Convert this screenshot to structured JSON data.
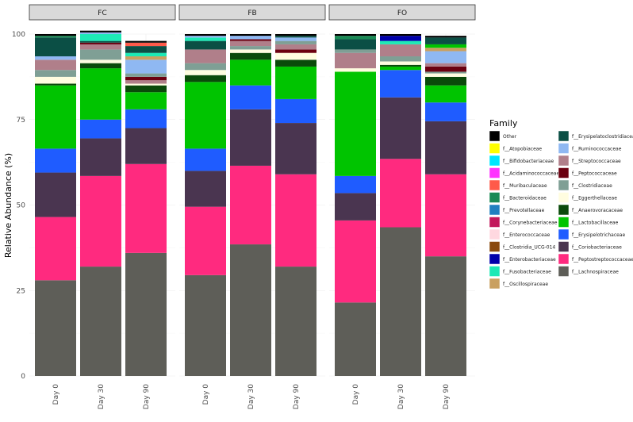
{
  "chart_data": {
    "type": "bar",
    "stacked": true,
    "ylabel": "Relative Abundance (%)",
    "ylim": [
      0,
      100
    ],
    "yticks": [
      0,
      25,
      50,
      75,
      100
    ],
    "grid": true,
    "legend_title": "Family",
    "legend_position": "right",
    "panels": [
      {
        "name": "FC",
        "categories": [
          "Day 0",
          "Day 30",
          "Day 90"
        ],
        "stacks": [
          [
            {
              "family": "f__Lachnospiraceae",
              "value": 28
            },
            {
              "family": "f__Peptostreptococcaceae",
              "value": 18.5
            },
            {
              "family": "f__Coriobacteriaceae",
              "value": 13
            },
            {
              "family": "f__Erysipelotrichaceae",
              "value": 7
            },
            {
              "family": "f__Lactobacillaceae",
              "value": 18.5
            },
            {
              "family": "f__Anaerovoracaceae",
              "value": 0.5
            },
            {
              "family": "f__Eggerthellaceae",
              "value": 2
            },
            {
              "family": "f__Clostridiaceae",
              "value": 2
            },
            {
              "family": "f__Streptococcaceae",
              "value": 3
            },
            {
              "family": "f__Ruminococcaceae",
              "value": 1
            },
            {
              "family": "f__Erysipelatoclostridiaceae",
              "value": 5.5
            },
            {
              "family": "f__Bacteroidaceae",
              "value": 0.5
            },
            {
              "family": "Other",
              "value": 0.5
            }
          ],
          [
            {
              "family": "f__Lachnospiraceae",
              "value": 32
            },
            {
              "family": "f__Peptostreptococcaceae",
              "value": 26.5
            },
            {
              "family": "f__Coriobacteriaceae",
              "value": 11
            },
            {
              "family": "f__Erysipelotrichaceae",
              "value": 5.5
            },
            {
              "family": "f__Lactobacillaceae",
              "value": 15
            },
            {
              "family": "f__Anaerovoracaceae",
              "value": 1.5
            },
            {
              "family": "f__Eggerthellaceae",
              "value": 1
            },
            {
              "family": "f__Clostridiaceae",
              "value": 3
            },
            {
              "family": "f__Streptococcaceae",
              "value": 1.5
            },
            {
              "family": "f__Peptococcaceae",
              "value": 0.5
            },
            {
              "family": "f__Erysipelatoclostridiaceae",
              "value": 0.5
            },
            {
              "family": "f__Fusobacteriaceae",
              "value": 2
            },
            {
              "family": "f__Ruminococcaceae",
              "value": 0.5
            },
            {
              "family": "Other",
              "value": 0.5
            }
          ],
          [
            {
              "family": "f__Lachnospiraceae",
              "value": 36
            },
            {
              "family": "f__Peptostreptococcaceae",
              "value": 26
            },
            {
              "family": "f__Coriobacteriaceae",
              "value": 10.5
            },
            {
              "family": "f__Erysipelotrichaceae",
              "value": 5.5
            },
            {
              "family": "f__Lactobacillaceae",
              "value": 5
            },
            {
              "family": "f__Anaerovoracaceae",
              "value": 2
            },
            {
              "family": "f__Eggerthellaceae",
              "value": 0.5
            },
            {
              "family": "f__Streptococcaceae",
              "value": 1
            },
            {
              "family": "f__Peptococcaceae",
              "value": 1
            },
            {
              "family": "f__Clostridiaceae",
              "value": 1
            },
            {
              "family": "f__Ruminococcaceae",
              "value": 4
            },
            {
              "family": "f__Oscillospiraceae",
              "value": 1
            },
            {
              "family": "f__Fusobacteriaceae",
              "value": 1
            },
            {
              "family": "f__Erysipelatoclostridiaceae",
              "value": 2
            },
            {
              "family": "f__Muribaculaceae",
              "value": 1
            },
            {
              "family": "Other",
              "value": 0.5
            }
          ]
        ]
      },
      {
        "name": "FB",
        "categories": [
          "Day 0",
          "Day 30",
          "Day 90"
        ],
        "stacks": [
          [
            {
              "family": "f__Lachnospiraceae",
              "value": 29.5
            },
            {
              "family": "f__Peptostreptococcaceae",
              "value": 20
            },
            {
              "family": "f__Coriobacteriaceae",
              "value": 10.5
            },
            {
              "family": "f__Erysipelotrichaceae",
              "value": 6.5
            },
            {
              "family": "f__Lactobacillaceae",
              "value": 19.5
            },
            {
              "family": "f__Anaerovoracaceae",
              "value": 2
            },
            {
              "family": "f__Eggerthellaceae",
              "value": 1.5
            },
            {
              "family": "f__Clostridiaceae",
              "value": 2
            },
            {
              "family": "f__Streptococcaceae",
              "value": 4
            },
            {
              "family": "f__Erysipelatoclostridiaceae",
              "value": 2.5
            },
            {
              "family": "f__Fusobacteriaceae",
              "value": 1
            },
            {
              "family": "f__Ruminococcaceae",
              "value": 0.5
            },
            {
              "family": "Other",
              "value": 0.5
            }
          ],
          [
            {
              "family": "f__Lachnospiraceae",
              "value": 38.5
            },
            {
              "family": "f__Peptostreptococcaceae",
              "value": 23
            },
            {
              "family": "f__Coriobacteriaceae",
              "value": 16.5
            },
            {
              "family": "f__Erysipelotrichaceae",
              "value": 7
            },
            {
              "family": "f__Lactobacillaceae",
              "value": 7.5
            },
            {
              "family": "f__Anaerovoracaceae",
              "value": 2
            },
            {
              "family": "f__Eggerthellaceae",
              "value": 1
            },
            {
              "family": "f__Clostridiaceae",
              "value": 1
            },
            {
              "family": "f__Streptococcaceae",
              "value": 1.5
            },
            {
              "family": "f__Peptococcaceae",
              "value": 0.5
            },
            {
              "family": "f__Ruminococcaceae",
              "value": 1
            },
            {
              "family": "Other",
              "value": 0.5
            }
          ],
          [
            {
              "family": "f__Lachnospiraceae",
              "value": 32
            },
            {
              "family": "f__Peptostreptococcaceae",
              "value": 27
            },
            {
              "family": "f__Coriobacteriaceae",
              "value": 15
            },
            {
              "family": "f__Erysipelotrichaceae",
              "value": 7
            },
            {
              "family": "f__Lactobacillaceae",
              "value": 9.5
            },
            {
              "family": "f__Anaerovoracaceae",
              "value": 2
            },
            {
              "family": "f__Eggerthellaceae",
              "value": 2
            },
            {
              "family": "f__Peptococcaceae",
              "value": 1
            },
            {
              "family": "f__Streptococcaceae",
              "value": 1.5
            },
            {
              "family": "f__Clostridiaceae",
              "value": 1
            },
            {
              "family": "f__Ruminococcaceae",
              "value": 1
            },
            {
              "family": "f__Erysipelatoclostridiaceae",
              "value": 0.5
            },
            {
              "family": "Other",
              "value": 0.5
            }
          ]
        ]
      },
      {
        "name": "FO",
        "categories": [
          "Day 0",
          "Day 30",
          "Day 90"
        ],
        "stacks": [
          [
            {
              "family": "f__Lachnospiraceae",
              "value": 21.5
            },
            {
              "family": "f__Peptostreptococcaceae",
              "value": 24
            },
            {
              "family": "f__Coriobacteriaceae",
              "value": 8
            },
            {
              "family": "f__Erysipelotrichaceae",
              "value": 5
            },
            {
              "family": "f__Lactobacillaceae",
              "value": 30.5
            },
            {
              "family": "f__Eggerthellaceae",
              "value": 1
            },
            {
              "family": "f__Streptococcaceae",
              "value": 4.5
            },
            {
              "family": "f__Clostridiaceae",
              "value": 1
            },
            {
              "family": "f__Erysipelatoclostridiaceae",
              "value": 3
            },
            {
              "family": "f__Bacteroidaceae",
              "value": 1
            },
            {
              "family": "Other",
              "value": 0.5
            }
          ],
          [
            {
              "family": "f__Lachnospiraceae",
              "value": 43.5
            },
            {
              "family": "f__Peptostreptococcaceae",
              "value": 20
            },
            {
              "family": "f__Coriobacteriaceae",
              "value": 18
            },
            {
              "family": "f__Erysipelotrichaceae",
              "value": 8
            },
            {
              "family": "f__Lactobacillaceae",
              "value": 1
            },
            {
              "family": "f__Anaerovoracaceae",
              "value": 0.5
            },
            {
              "family": "f__Eggerthellaceae",
              "value": 1
            },
            {
              "family": "f__Clostridiaceae",
              "value": 1.5
            },
            {
              "family": "f__Streptococcaceae",
              "value": 3.5
            },
            {
              "family": "f__Fusobacteriaceae",
              "value": 1
            },
            {
              "family": "f__Enterobacteriaceae",
              "value": 1.5
            },
            {
              "family": "Other",
              "value": 0.5
            }
          ],
          [
            {
              "family": "f__Lachnospiraceae",
              "value": 35
            },
            {
              "family": "f__Peptostreptococcaceae",
              "value": 24
            },
            {
              "family": "f__Coriobacteriaceae",
              "value": 15.5
            },
            {
              "family": "f__Erysipelotrichaceae",
              "value": 5.5
            },
            {
              "family": "f__Lactobacillaceae",
              "value": 5
            },
            {
              "family": "f__Anaerovoracaceae",
              "value": 2.5
            },
            {
              "family": "f__Eggerthellaceae",
              "value": 1
            },
            {
              "family": "f__Clostridiaceae",
              "value": 0.5
            },
            {
              "family": "f__Peptococcaceae",
              "value": 1.5
            },
            {
              "family": "f__Streptococcaceae",
              "value": 1
            },
            {
              "family": "f__Ruminococcaceae",
              "value": 3.5
            },
            {
              "family": "f__Oscillospiraceae",
              "value": 1
            },
            {
              "family": "f__Lactobacillaceae",
              "value": 1
            },
            {
              "family": "f__Erysipelatoclostridiaceae",
              "value": 2
            },
            {
              "family": "Other",
              "value": 0.5
            }
          ]
        ]
      }
    ],
    "legend": [
      {
        "label": "Other",
        "color": "#000000"
      },
      {
        "label": "f__Atopobiaceae",
        "color": "#ffff00"
      },
      {
        "label": "f__Bifidobacteriaceae",
        "color": "#00e5ff"
      },
      {
        "label": "f__Acidaminococcaceae",
        "color": "#ff33ff"
      },
      {
        "label": "f__Muribaculaceae",
        "color": "#ff5a4a"
      },
      {
        "label": "f__Bacteroidaceae",
        "color": "#1a8a55"
      },
      {
        "label": "f__Prevotellaceae",
        "color": "#1f7fbf"
      },
      {
        "label": "f__Corynebacteriaceae",
        "color": "#c2185b"
      },
      {
        "label": "f__Enterococcaceae",
        "color": "#ffd8e0"
      },
      {
        "label": "f__Clostridia_UCG-014",
        "color": "#8a4b0f"
      },
      {
        "label": "f__Enterobacteriaceae",
        "color": "#0000aa"
      },
      {
        "label": "f__Fusobacteriaceae",
        "color": "#1de9b6"
      },
      {
        "label": "f__Oscillospiraceae",
        "color": "#c9a060"
      },
      {
        "label": "f__Erysipelatoclostridiaceae",
        "color": "#0b4f45"
      },
      {
        "label": "f__Ruminococcaceae",
        "color": "#8fb8f2"
      },
      {
        "label": "f__Streptococcaceae",
        "color": "#b07f8a"
      },
      {
        "label": "f__Peptococcaceae",
        "color": "#6b0010"
      },
      {
        "label": "f__Clostridiaceae",
        "color": "#7f9f95"
      },
      {
        "label": "f__Eggerthellaceae",
        "color": "#fffde0"
      },
      {
        "label": "f__Anaerovoracaceae",
        "color": "#0a4a0a"
      },
      {
        "label": "f__Lactobacillaceae",
        "color": "#00c400"
      },
      {
        "label": "f__Erysipelotrichaceae",
        "color": "#1f5cff"
      },
      {
        "label": "f__Coriobacteriaceae",
        "color": "#4a3550"
      },
      {
        "label": "f__Peptostreptococcaceae",
        "color": "#ff2a7f"
      },
      {
        "label": "f__Lachnospiraceae",
        "color": "#5e5e58"
      }
    ]
  }
}
